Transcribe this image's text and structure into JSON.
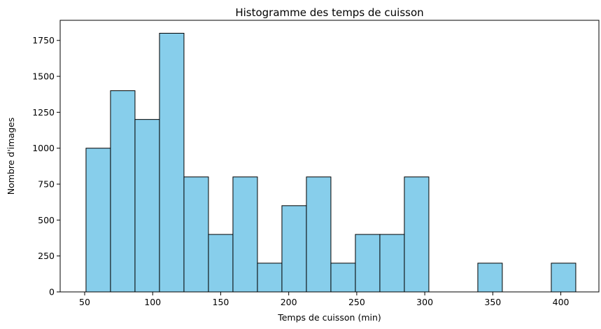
{
  "chart_data": {
    "type": "bar",
    "title": "Histogramme des temps de cuisson",
    "xlabel": "Temps de cuisson (min)",
    "ylabel": "Nombre d'images",
    "xlim": [
      32,
      428
    ],
    "ylim": [
      0,
      1890
    ],
    "xticks": [
      50,
      100,
      150,
      200,
      250,
      300,
      350,
      400
    ],
    "yticks": [
      0,
      250,
      500,
      750,
      1000,
      1250,
      1500,
      1750
    ],
    "bin_edges": [
      51,
      69,
      87,
      105,
      123,
      141,
      159,
      177,
      195,
      213,
      231,
      249,
      267,
      285,
      303,
      321,
      339,
      357,
      375,
      393,
      411
    ],
    "values": [
      1000,
      1400,
      1200,
      1800,
      800,
      400,
      800,
      200,
      600,
      800,
      200,
      400,
      400,
      800,
      0,
      0,
      200,
      0,
      0,
      200
    ],
    "bar_color": "#87ceeb",
    "edge_color": "#000000",
    "grid": false,
    "legend": "none"
  }
}
